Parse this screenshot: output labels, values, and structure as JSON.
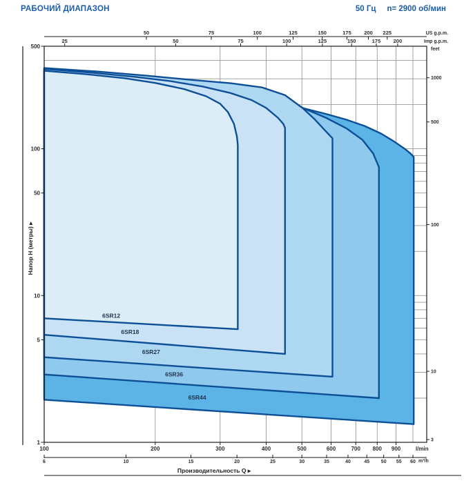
{
  "header": {
    "title": "РАБОЧИЙ ДИАПАЗОН",
    "frequency": "50 Гц",
    "speed": "n= 2900 об/мин"
  },
  "axis_titles": {
    "y": "Напор H (метры)  ▸",
    "x": "Производительность Q  ▸"
  },
  "chart_data": {
    "type": "area",
    "title": "РАБОЧИЙ ДИАПАЗОН",
    "x_scale": "log",
    "y_scale": "log",
    "x_range_lmin": [
      100,
      1090
    ],
    "y_range_m": [
      1,
      500
    ],
    "axes": {
      "us_gpm": {
        "label": "US g.p.m.",
        "ticks": [
          50,
          75,
          100,
          125,
          150,
          175,
          200,
          225
        ]
      },
      "imp_gpm": {
        "label": "Imp g.p.m.",
        "ticks": [
          25,
          50,
          75,
          100,
          125,
          150,
          175,
          200
        ]
      },
      "lmin": {
        "label": "l/min",
        "ticks": [
          100,
          200,
          300,
          400,
          500,
          600,
          700,
          800,
          900
        ]
      },
      "m3h": {
        "label": "m³/h",
        "ticks": [
          6,
          10,
          15,
          20,
          25,
          30,
          35,
          40,
          45,
          50,
          55,
          60
        ]
      },
      "head_m": {
        "label": "Напор H (метры)",
        "ticks": [
          500,
          100,
          50,
          10,
          5,
          1
        ]
      },
      "feet": {
        "label": "feet",
        "ticks": [
          1000,
          500,
          100,
          10,
          3
        ]
      }
    },
    "grid": {
      "h_lines_m": [
        400,
        300,
        200,
        100,
        90,
        80,
        70,
        60,
        50,
        40,
        30,
        20,
        10,
        9,
        8,
        7,
        6,
        5,
        4,
        3,
        2
      ],
      "v_lines_lmin": [
        200,
        300,
        400,
        500,
        600,
        700,
        800,
        900,
        1000
      ]
    },
    "stroke": "#0d4f96",
    "series": [
      {
        "name": "6SR12",
        "fill": "#dcedf8",
        "q_min_lmin": 100,
        "q_max_lmin": 335,
        "h_max_m": 340,
        "h_knee_m": 106,
        "h_min_left_m": 7.0,
        "h_min_right_m": 5.9,
        "top_QH": [
          [
            100,
            340
          ],
          [
            130,
            322
          ],
          [
            165,
            303
          ],
          [
            200,
            281
          ],
          [
            240,
            255
          ],
          [
            275,
            228
          ],
          [
            300,
            203
          ],
          [
            315,
            178
          ],
          [
            327,
            148
          ],
          [
            333,
            122
          ],
          [
            335,
            106
          ]
        ],
        "label_QH": [
          152,
          7.3
        ]
      },
      {
        "name": "6SR18",
        "fill": "#c9e2f5",
        "q_min_lmin": 100,
        "q_max_lmin": 450,
        "h_max_m": 350,
        "h_knee_m": 139,
        "h_min_left_m": 5.4,
        "h_min_right_m": 4.0,
        "top_QH": [
          [
            100,
            350
          ],
          [
            135,
            330
          ],
          [
            175,
            310
          ],
          [
            220,
            289
          ],
          [
            270,
            265
          ],
          [
            320,
            240
          ],
          [
            365,
            215
          ],
          [
            400,
            190
          ],
          [
            430,
            163
          ],
          [
            445,
            148
          ],
          [
            450,
            139
          ]
        ],
        "label_QH": [
          171,
          5.65
        ]
      },
      {
        "name": "6SR27",
        "fill": "#aed7f1",
        "q_min_lmin": 100,
        "q_max_lmin": 605,
        "h_max_m": 355,
        "h_knee_m": 118,
        "h_min_left_m": 3.8,
        "h_min_right_m": 2.8,
        "top_QH": [
          [
            100,
            355
          ],
          [
            140,
            336
          ],
          [
            190,
            315
          ],
          [
            250,
            295
          ],
          [
            320,
            280
          ],
          [
            390,
            262
          ],
          [
            450,
            232
          ],
          [
            503,
            189
          ],
          [
            540,
            160
          ],
          [
            575,
            135
          ],
          [
            605,
            118
          ]
        ],
        "label_QH": [
          195,
          4.12
        ]
      },
      {
        "name": "6SR36",
        "fill": "#8fc9ed",
        "q_min_lmin": 100,
        "q_max_lmin": 809,
        "h_max_m": 345,
        "h_knee_m": 75,
        "h_min_left_m": 2.9,
        "h_min_right_m": 2.0,
        "top_QH": [
          [
            100,
            345
          ],
          [
            140,
            326
          ],
          [
            195,
            306
          ],
          [
            260,
            288
          ],
          [
            330,
            268
          ],
          [
            400,
            243
          ],
          [
            460,
            215
          ],
          [
            505,
            189
          ],
          [
            580,
            163
          ],
          [
            660,
            138
          ],
          [
            730,
            115
          ],
          [
            780,
            93
          ],
          [
            809,
            75
          ]
        ],
        "label_QH": [
          225,
          2.9
        ]
      },
      {
        "name": "6SR44",
        "fill": "#5cb4e6",
        "q_min_lmin": 100,
        "q_max_lmin": 1005,
        "h_max_m": 330,
        "h_knee_m": 88,
        "h_min_left_m": 1.95,
        "h_min_right_m": 1.33,
        "top_QH": [
          [
            100,
            330
          ],
          [
            140,
            310
          ],
          [
            190,
            291
          ],
          [
            250,
            272
          ],
          [
            316,
            253
          ],
          [
            380,
            228
          ],
          [
            440,
            206
          ],
          [
            505,
            189
          ],
          [
            580,
            173
          ],
          [
            660,
            158
          ],
          [
            740,
            143
          ],
          [
            820,
            127
          ],
          [
            890,
            112
          ],
          [
            950,
            100
          ],
          [
            985,
            93
          ],
          [
            1005,
            88
          ]
        ],
        "label_QH": [
          260,
          2.02
        ]
      }
    ]
  }
}
